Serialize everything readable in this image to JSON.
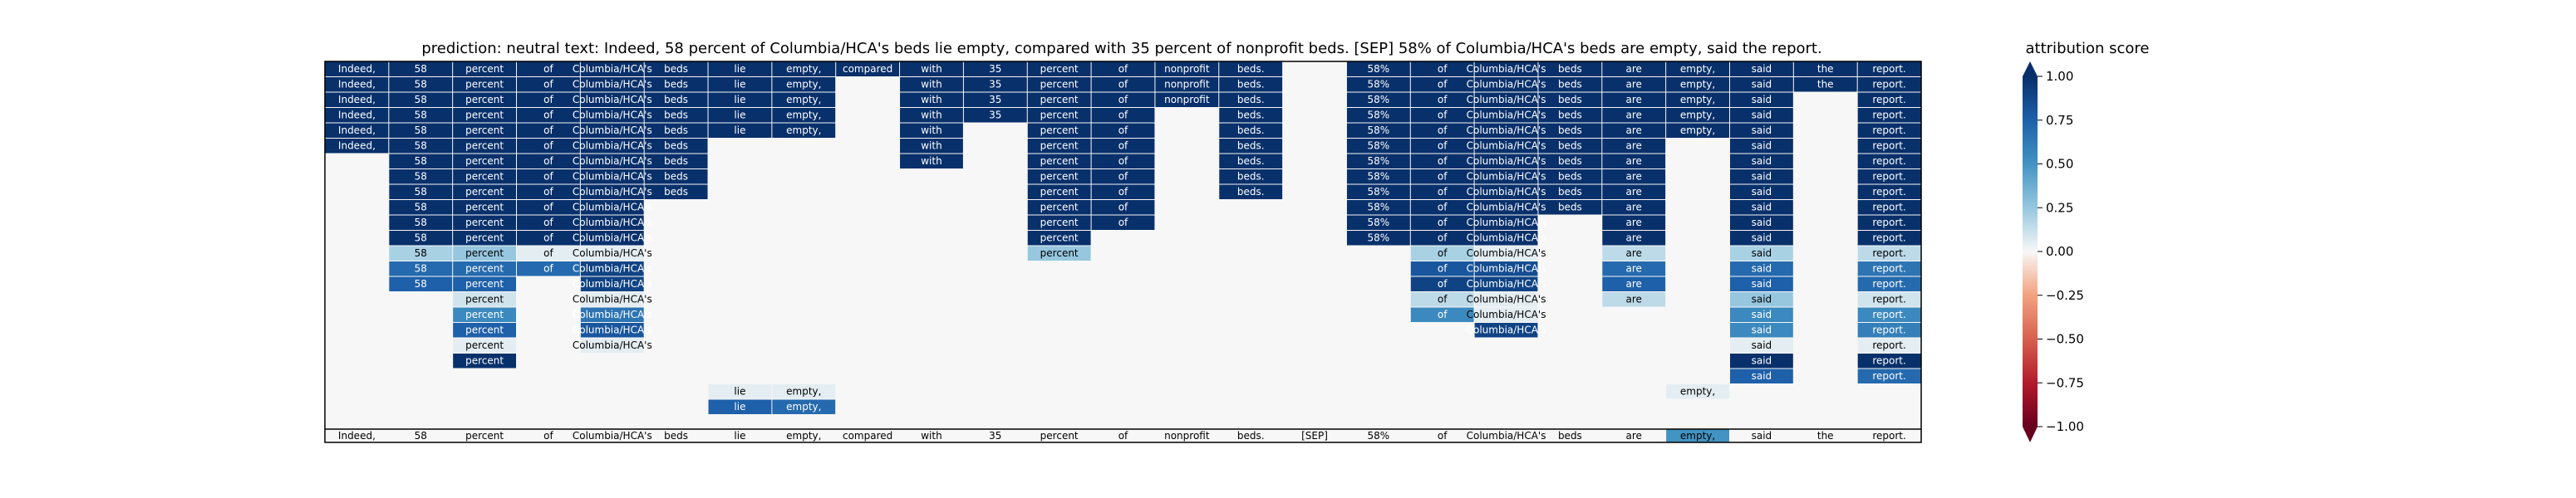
{
  "title": "prediction:  neutral     text:  Indeed, 58 percent of Columbia/HCA's beds lie empty, compared with 35 percent of nonprofit beds. [SEP] 58% of Columbia/HCA's beds are empty, said the report.",
  "colorbar": {
    "label": "attribution score",
    "ticks": [
      "1.00",
      "0.75",
      "0.50",
      "0.25",
      "0.00",
      "−0.25",
      "−0.50",
      "−0.75",
      "−1.00"
    ]
  },
  "colors": {
    "background": "#f7f7f7",
    "high": "#08306b",
    "mid": "#f7f7f7",
    "low": "#67001f"
  },
  "chart_data": {
    "type": "heatmap",
    "tokens": [
      "Indeed,",
      "58",
      "percent",
      "of",
      "Columbia/HCA's",
      "beds",
      "lie",
      "empty,",
      "compared",
      "with",
      "35",
      "percent",
      "of",
      "nonprofit",
      "beds.",
      "[SEP]",
      "58%",
      "of",
      "Columbia/HCA's",
      "beds",
      "are",
      "empty,",
      "said",
      "the",
      "report."
    ],
    "row_count": 24,
    "bottom_row": {
      "labels": [
        "Indeed,",
        "58",
        "percent",
        "of",
        "Columbia/HCA's",
        "beds",
        "lie",
        "empty,",
        "compared",
        "with",
        "35",
        "percent",
        "of",
        "nonprofit",
        "beds.",
        "[SEP]",
        "58%",
        "of",
        "Columbia/HCA's",
        "beds",
        "are",
        "empty,",
        "said",
        "the",
        "report."
      ],
      "values": [
        0,
        0,
        0,
        0,
        0,
        0,
        0,
        0,
        0,
        0,
        0,
        0,
        0,
        0,
        0,
        0,
        0,
        0,
        0,
        0,
        0,
        0.5,
        0,
        0,
        0
      ]
    },
    "columns": [
      {
        "token": "Indeed,",
        "cells": [
          [
            0,
            1
          ],
          [
            1,
            1
          ],
          [
            2,
            1
          ],
          [
            3,
            1
          ],
          [
            4,
            1
          ],
          [
            5,
            1
          ]
        ]
      },
      {
        "token": "58",
        "cells": [
          [
            0,
            1
          ],
          [
            1,
            1
          ],
          [
            2,
            1
          ],
          [
            3,
            1
          ],
          [
            4,
            1
          ],
          [
            5,
            1
          ],
          [
            6,
            1
          ],
          [
            7,
            1
          ],
          [
            8,
            1
          ],
          [
            9,
            1
          ],
          [
            10,
            1
          ],
          [
            11,
            1
          ],
          [
            12,
            0.2
          ],
          [
            13,
            0.7
          ],
          [
            14,
            0.75
          ]
        ]
      },
      {
        "token": "percent",
        "cells": [
          [
            0,
            1
          ],
          [
            1,
            1
          ],
          [
            2,
            1
          ],
          [
            3,
            1
          ],
          [
            4,
            1
          ],
          [
            5,
            1
          ],
          [
            6,
            1
          ],
          [
            7,
            1
          ],
          [
            8,
            1
          ],
          [
            9,
            1
          ],
          [
            10,
            1
          ],
          [
            11,
            1
          ],
          [
            12,
            0.25
          ],
          [
            13,
            0.7
          ],
          [
            14,
            0.75
          ],
          [
            15,
            0.1
          ],
          [
            16,
            0.55
          ],
          [
            17,
            0.75
          ],
          [
            18,
            0.05
          ],
          [
            19,
            1
          ]
        ]
      },
      {
        "token": "of",
        "cells": [
          [
            0,
            1
          ],
          [
            1,
            1
          ],
          [
            2,
            1
          ],
          [
            3,
            1
          ],
          [
            4,
            1
          ],
          [
            5,
            1
          ],
          [
            6,
            1
          ],
          [
            7,
            1
          ],
          [
            8,
            1
          ],
          [
            9,
            1
          ],
          [
            10,
            1
          ],
          [
            11,
            1
          ],
          [
            12,
            0.05
          ],
          [
            13,
            0.7
          ]
        ]
      },
      {
        "token": "Columbia/HCA's",
        "cells": [
          [
            0,
            1
          ],
          [
            1,
            1
          ],
          [
            2,
            1
          ],
          [
            3,
            1
          ],
          [
            4,
            1
          ],
          [
            5,
            1
          ],
          [
            6,
            1
          ],
          [
            7,
            1
          ],
          [
            8,
            1
          ],
          [
            9,
            1
          ],
          [
            10,
            1
          ],
          [
            11,
            1
          ],
          [
            12,
            0.05
          ],
          [
            13,
            0.9
          ],
          [
            14,
            0.9
          ],
          [
            15,
            0.05
          ],
          [
            16,
            0.65
          ],
          [
            17,
            0.8
          ],
          [
            18,
            0.05
          ]
        ]
      },
      {
        "token": "beds",
        "cells": [
          [
            0,
            1
          ],
          [
            1,
            1
          ],
          [
            2,
            1
          ],
          [
            3,
            1
          ],
          [
            4,
            1
          ],
          [
            5,
            1
          ],
          [
            6,
            1
          ],
          [
            7,
            1
          ],
          [
            8,
            1
          ]
        ]
      },
      {
        "token": "lie",
        "cells": [
          [
            0,
            1
          ],
          [
            1,
            1
          ],
          [
            2,
            1
          ],
          [
            3,
            1
          ],
          [
            4,
            1
          ],
          [
            21,
            0.05
          ],
          [
            22,
            0.75
          ]
        ]
      },
      {
        "token": "empty,",
        "cells": [
          [
            0,
            1
          ],
          [
            1,
            1
          ],
          [
            2,
            1
          ],
          [
            3,
            1
          ],
          [
            4,
            1
          ],
          [
            21,
            0.05
          ],
          [
            22,
            0.7
          ]
        ]
      },
      {
        "token": "compared",
        "cells": [
          [
            0,
            1
          ]
        ]
      },
      {
        "token": "with",
        "cells": [
          [
            0,
            1
          ],
          [
            1,
            1
          ],
          [
            2,
            1
          ],
          [
            3,
            1
          ],
          [
            4,
            1
          ],
          [
            5,
            1
          ],
          [
            6,
            1
          ]
        ]
      },
      {
        "token": "35",
        "cells": [
          [
            0,
            1
          ],
          [
            1,
            1
          ],
          [
            2,
            1
          ],
          [
            3,
            1
          ]
        ]
      },
      {
        "token": "percent",
        "cells": [
          [
            0,
            1
          ],
          [
            1,
            1
          ],
          [
            2,
            1
          ],
          [
            3,
            1
          ],
          [
            4,
            1
          ],
          [
            5,
            1
          ],
          [
            6,
            1
          ],
          [
            7,
            1
          ],
          [
            8,
            1
          ],
          [
            9,
            1
          ],
          [
            10,
            1
          ],
          [
            11,
            1
          ],
          [
            12,
            0.25
          ]
        ]
      },
      {
        "token": "of",
        "cells": [
          [
            0,
            1
          ],
          [
            1,
            1
          ],
          [
            2,
            1
          ],
          [
            3,
            1
          ],
          [
            4,
            1
          ],
          [
            5,
            1
          ],
          [
            6,
            1
          ],
          [
            7,
            1
          ],
          [
            8,
            1
          ],
          [
            9,
            1
          ],
          [
            10,
            1
          ]
        ]
      },
      {
        "token": "nonprofit",
        "cells": [
          [
            0,
            1
          ],
          [
            1,
            1
          ],
          [
            2,
            1
          ]
        ]
      },
      {
        "token": "beds.",
        "cells": [
          [
            0,
            1
          ],
          [
            1,
            1
          ],
          [
            2,
            1
          ],
          [
            3,
            1
          ],
          [
            4,
            1
          ],
          [
            5,
            1
          ],
          [
            6,
            1
          ],
          [
            7,
            1
          ],
          [
            8,
            1
          ]
        ]
      },
      {
        "token": "[SEP]",
        "cells": []
      },
      {
        "token": "58%",
        "cells": [
          [
            0,
            1
          ],
          [
            1,
            1
          ],
          [
            2,
            1
          ],
          [
            3,
            1
          ],
          [
            4,
            1
          ],
          [
            5,
            1
          ],
          [
            6,
            1
          ],
          [
            7,
            1
          ],
          [
            8,
            1
          ],
          [
            9,
            1
          ],
          [
            10,
            1
          ],
          [
            11,
            1
          ]
        ]
      },
      {
        "token": "of",
        "cells": [
          [
            0,
            1
          ],
          [
            1,
            1
          ],
          [
            2,
            1
          ],
          [
            3,
            1
          ],
          [
            4,
            1
          ],
          [
            5,
            1
          ],
          [
            6,
            1
          ],
          [
            7,
            1
          ],
          [
            8,
            1
          ],
          [
            9,
            1
          ],
          [
            10,
            1
          ],
          [
            11,
            1
          ],
          [
            12,
            0.2
          ],
          [
            13,
            0.8
          ],
          [
            14,
            0.9
          ],
          [
            15,
            0.15
          ],
          [
            16,
            0.55
          ]
        ]
      },
      {
        "token": "Columbia/HCA's",
        "cells": [
          [
            0,
            1
          ],
          [
            1,
            1
          ],
          [
            2,
            1
          ],
          [
            3,
            1
          ],
          [
            4,
            1
          ],
          [
            5,
            1
          ],
          [
            6,
            1
          ],
          [
            7,
            1
          ],
          [
            8,
            1
          ],
          [
            9,
            1
          ],
          [
            10,
            1
          ],
          [
            11,
            1
          ],
          [
            12,
            0.05
          ],
          [
            13,
            0.85
          ],
          [
            14,
            0.9
          ],
          [
            15,
            0.05
          ],
          [
            16,
            0.05
          ],
          [
            17,
            0.9
          ]
        ]
      },
      {
        "token": "beds",
        "cells": [
          [
            0,
            1
          ],
          [
            1,
            1
          ],
          [
            2,
            1
          ],
          [
            3,
            1
          ],
          [
            4,
            1
          ],
          [
            5,
            1
          ],
          [
            6,
            1
          ],
          [
            7,
            1
          ],
          [
            8,
            1
          ],
          [
            9,
            1
          ]
        ]
      },
      {
        "token": "are",
        "cells": [
          [
            0,
            1
          ],
          [
            1,
            1
          ],
          [
            2,
            1
          ],
          [
            3,
            1
          ],
          [
            4,
            1
          ],
          [
            5,
            1
          ],
          [
            6,
            1
          ],
          [
            7,
            1
          ],
          [
            8,
            1
          ],
          [
            9,
            1
          ],
          [
            10,
            1
          ],
          [
            11,
            1
          ],
          [
            12,
            0.15
          ],
          [
            13,
            0.7
          ],
          [
            14,
            0.75
          ],
          [
            15,
            0.15
          ]
        ]
      },
      {
        "token": "empty,",
        "cells": [
          [
            0,
            1
          ],
          [
            1,
            1
          ],
          [
            2,
            1
          ],
          [
            3,
            1
          ],
          [
            4,
            1
          ],
          [
            21,
            0.05
          ]
        ]
      },
      {
        "token": "said",
        "cells": [
          [
            0,
            1
          ],
          [
            1,
            1
          ],
          [
            2,
            1
          ],
          [
            3,
            1
          ],
          [
            4,
            1
          ],
          [
            5,
            1
          ],
          [
            6,
            1
          ],
          [
            7,
            1
          ],
          [
            8,
            1
          ],
          [
            9,
            1
          ],
          [
            10,
            1
          ],
          [
            11,
            1
          ],
          [
            12,
            0.2
          ],
          [
            13,
            0.7
          ],
          [
            14,
            0.75
          ],
          [
            15,
            0.25
          ],
          [
            16,
            0.55
          ],
          [
            17,
            0.55
          ],
          [
            18,
            0.05
          ],
          [
            19,
            1
          ],
          [
            20,
            0.75
          ]
        ]
      },
      {
        "token": "the",
        "cells": [
          [
            0,
            1
          ],
          [
            1,
            1
          ]
        ]
      },
      {
        "token": "report.",
        "cells": [
          [
            0,
            1
          ],
          [
            1,
            1
          ],
          [
            2,
            1
          ],
          [
            3,
            1
          ],
          [
            4,
            1
          ],
          [
            5,
            1
          ],
          [
            6,
            1
          ],
          [
            7,
            1
          ],
          [
            8,
            1
          ],
          [
            9,
            1
          ],
          [
            10,
            1
          ],
          [
            11,
            1
          ],
          [
            12,
            0.15
          ],
          [
            13,
            0.65
          ],
          [
            14,
            0.7
          ],
          [
            15,
            0.1
          ],
          [
            16,
            0.55
          ],
          [
            17,
            0.6
          ],
          [
            18,
            0.05
          ],
          [
            19,
            1
          ],
          [
            20,
            0.7
          ]
        ]
      }
    ],
    "color_range": [
      -1,
      1
    ],
    "colormap": "RdBu"
  }
}
